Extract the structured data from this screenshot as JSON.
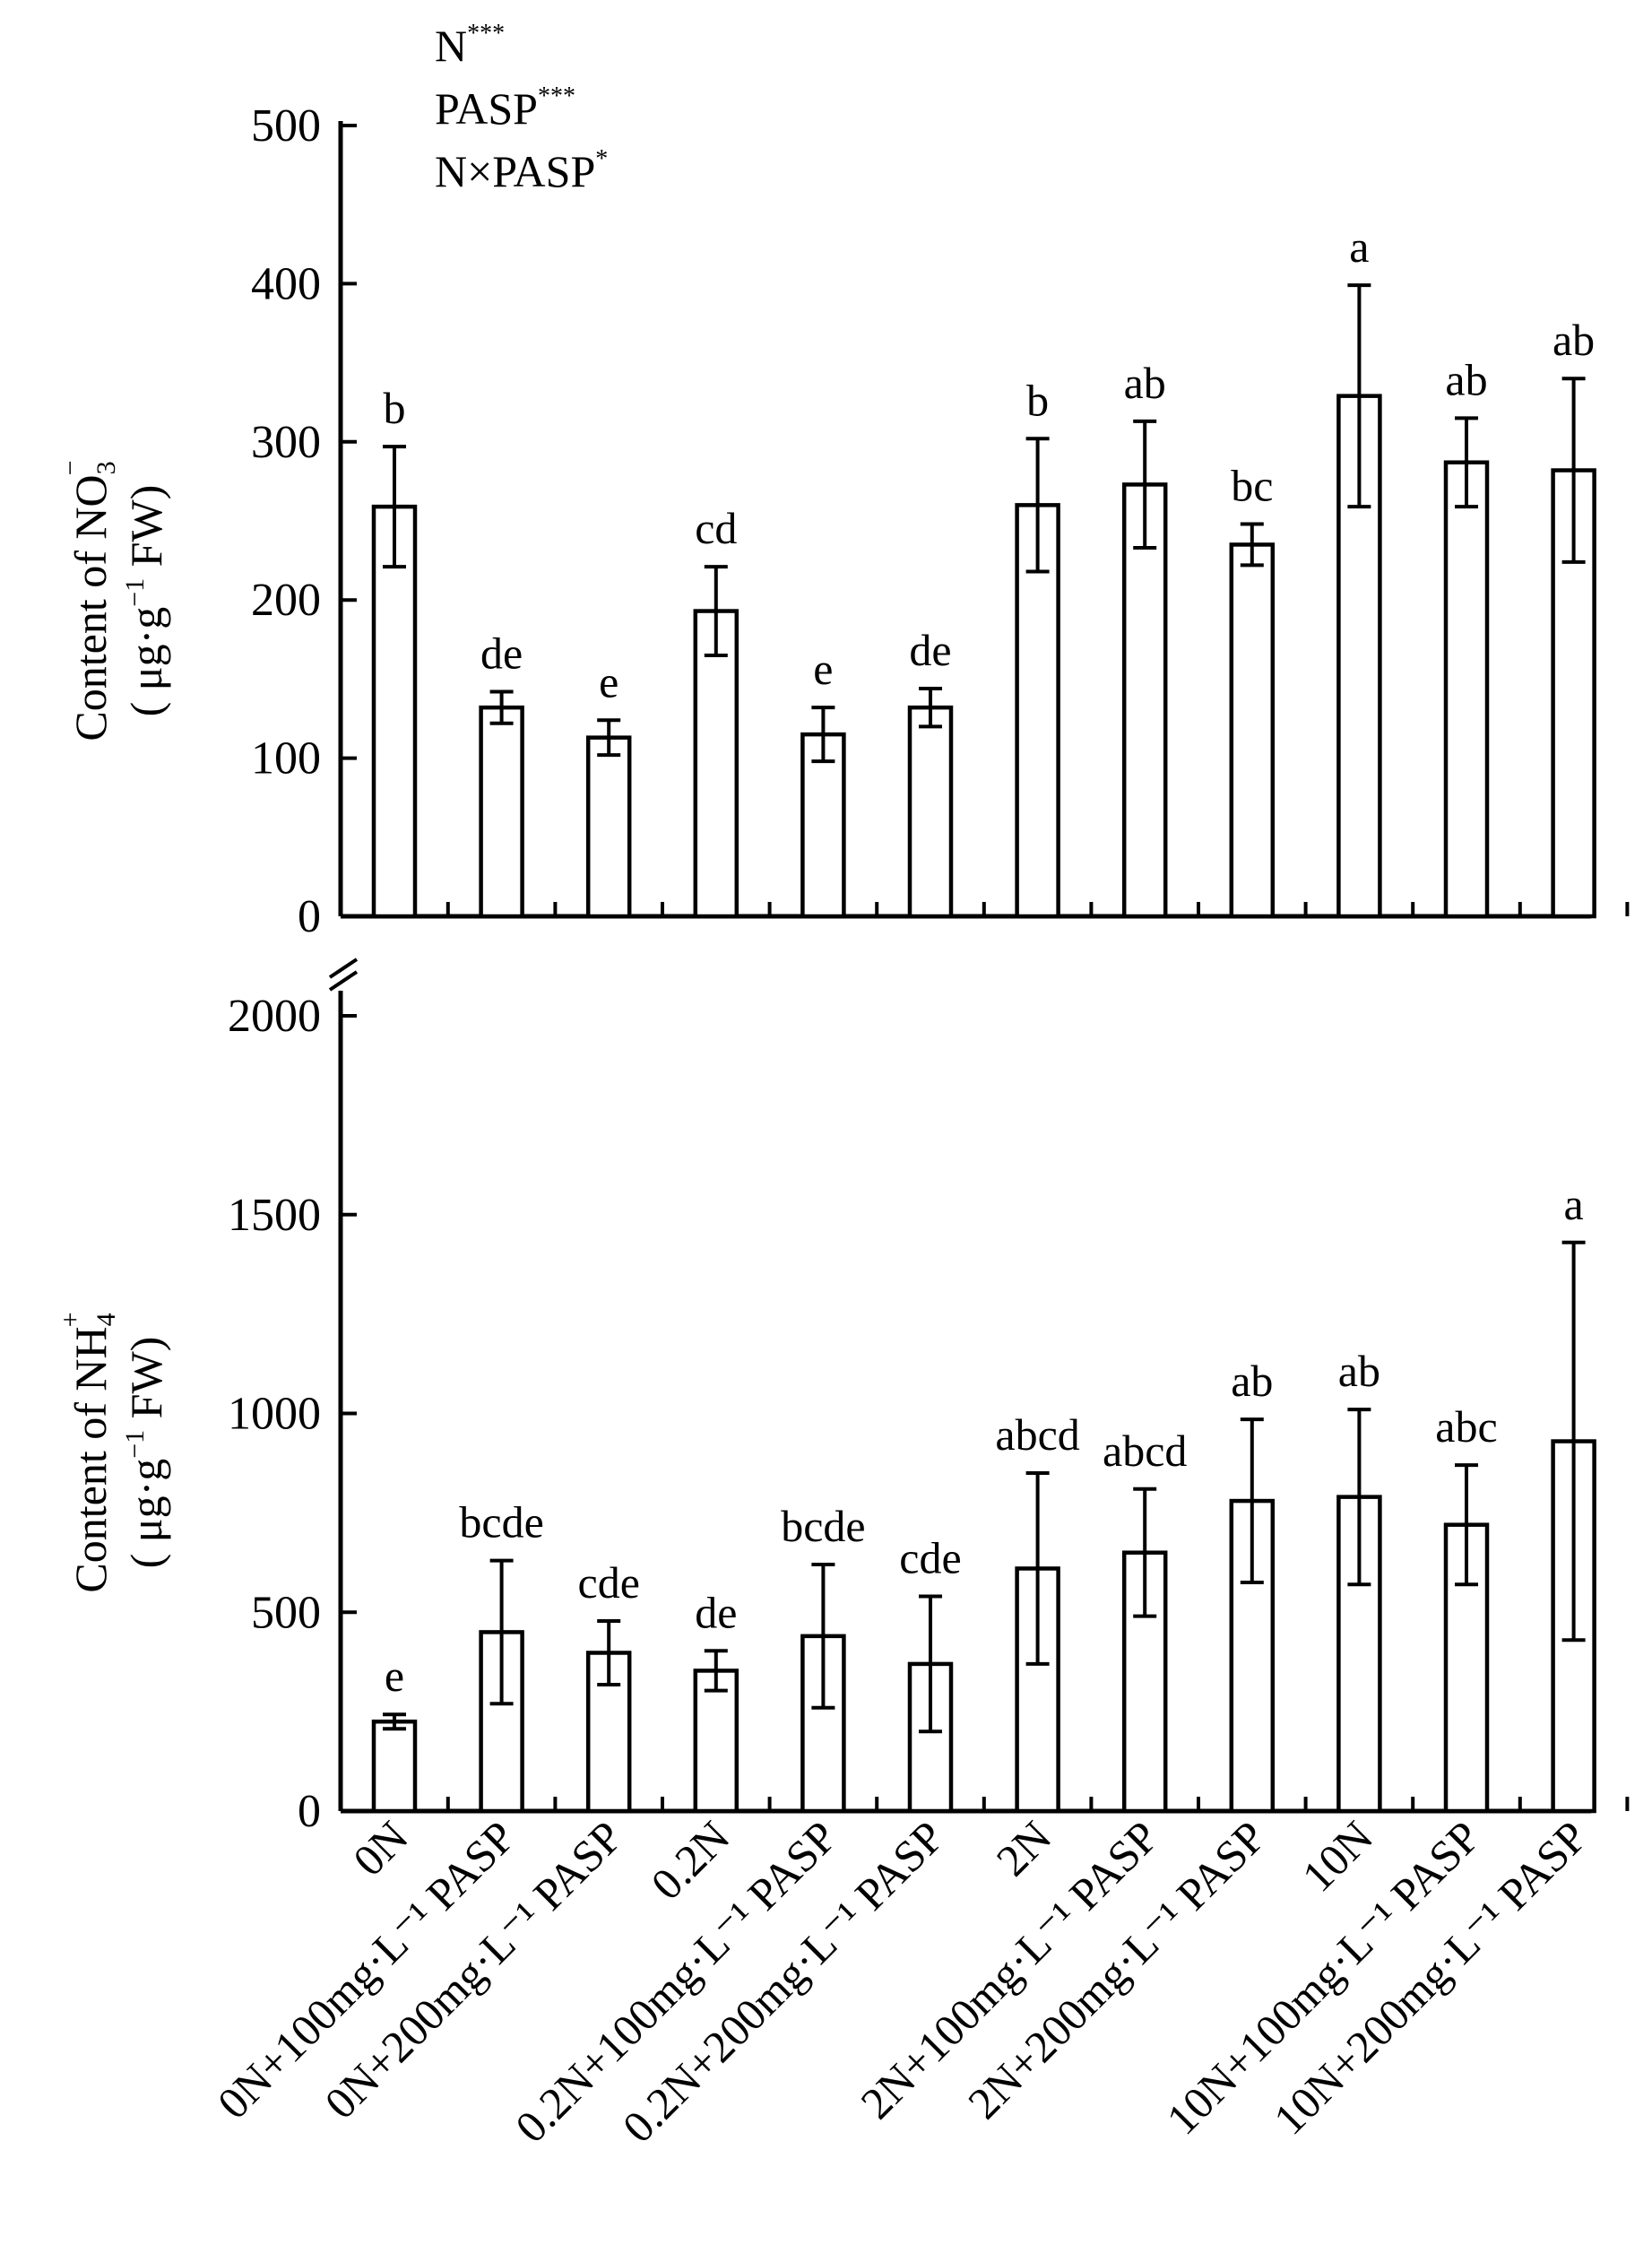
{
  "chart_data": [
    {
      "type": "bar",
      "panel": "top",
      "ylabel_line1": "Content of NO",
      "ylabel_ion_sub": "3",
      "ylabel_ion_sup": "−",
      "ylabel_line2_a": "( μg·g",
      "ylabel_line2_sup": "−1",
      "ylabel_line2_b": " FW)",
      "ylim": [
        0,
        500
      ],
      "yticks": [
        "0",
        "100",
        "200",
        "300",
        "400",
        "500"
      ],
      "grid": false,
      "categories": [
        "0N",
        "0N+100mg·L⁻¹ PASP",
        "0N+200mg·L⁻¹ PASP",
        "0.2N",
        "0.2N+100mg·L⁻¹ PASP",
        "0.2N+200mg·L⁻¹ PASP",
        "2N",
        "2N+100mg·L⁻¹ PASP",
        "2N+200mg·L⁻¹ PASP",
        "10N",
        "10N+100mg·L⁻¹ PASP",
        "10N+200mg·L⁻¹ PASP"
      ],
      "values": [
        259,
        132,
        113,
        193,
        115,
        132,
        260,
        273,
        235,
        329,
        287,
        282
      ],
      "errors": [
        38,
        10,
        11,
        28,
        17,
        12,
        42,
        40,
        13,
        70,
        28,
        58
      ],
      "letters": [
        "b",
        "de",
        "e",
        "cd",
        "e",
        "de",
        "b",
        "ab",
        "bc",
        "a",
        "ab",
        "ab"
      ],
      "anova": [
        {
          "label": "N",
          "sig": "***"
        },
        {
          "label": "PASP",
          "sig": "***"
        },
        {
          "label": "N×PASP",
          "sig": "*"
        }
      ]
    },
    {
      "type": "bar",
      "panel": "bottom",
      "ylabel_line1": "Content of NH",
      "ylabel_ion_sub": "4",
      "ylabel_ion_sup": "+",
      "ylabel_line2_a": "( μg·g",
      "ylabel_line2_sup": "−1",
      "ylabel_line2_b": " FW)",
      "ylim": [
        0,
        2000
      ],
      "yticks": [
        "0",
        "500",
        "1000",
        "1500",
        "2000"
      ],
      "grid": false,
      "categories": [
        "0N",
        "0N+100mg·L⁻¹ PASP",
        "0N+200mg·L⁻¹ PASP",
        "0.2N",
        "0.2N+100mg·L⁻¹ PASP",
        "0.2N+200mg·L⁻¹ PASP",
        "2N",
        "2N+100mg·L⁻¹ PASP",
        "2N+200mg·L⁻¹ PASP",
        "10N",
        "10N+100mg·L⁻¹ PASP",
        "10N+200mg·L⁻¹ PASP"
      ],
      "values": [
        225,
        450,
        398,
        353,
        440,
        370,
        610,
        650,
        780,
        790,
        720,
        930
      ],
      "errors": [
        18,
        180,
        80,
        50,
        180,
        170,
        240,
        160,
        205,
        220,
        150,
        500
      ],
      "letters": [
        "e",
        "bcde",
        "cde",
        "de",
        "bcde",
        "cde",
        "abcd",
        "abcd",
        "ab",
        "ab",
        "abc",
        "a"
      ]
    }
  ]
}
